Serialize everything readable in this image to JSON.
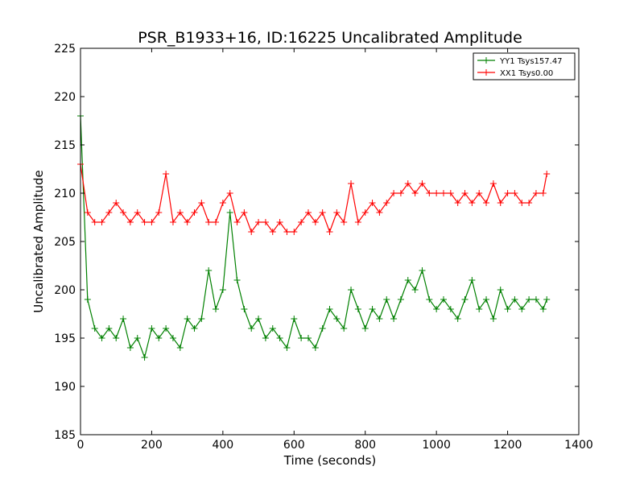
{
  "chart_data": {
    "type": "line",
    "title": "PSR_B1933+16, ID:16225 Uncalibrated Amplitude",
    "xlabel": "Time (seconds)",
    "ylabel": "Uncalibrated Amplitude",
    "xlim": [
      0,
      1400
    ],
    "ylim": [
      185,
      225
    ],
    "xticks": [
      "0",
      "200",
      "400",
      "600",
      "800",
      "1000",
      "1200",
      "1400"
    ],
    "yticks": [
      "185",
      "190",
      "195",
      "200",
      "205",
      "210",
      "215",
      "220",
      "225"
    ],
    "grid": false,
    "legend_position": "top-right",
    "series": [
      {
        "name": "YY1 Tsys157.47",
        "color": "#008000",
        "marker": "+",
        "x": [
          0,
          20,
          40,
          60,
          80,
          100,
          120,
          140,
          160,
          180,
          200,
          220,
          240,
          260,
          280,
          300,
          320,
          340,
          360,
          380,
          400,
          420,
          440,
          460,
          480,
          500,
          520,
          540,
          560,
          580,
          600,
          620,
          640,
          660,
          680,
          700,
          720,
          740,
          760,
          780,
          800,
          820,
          840,
          860,
          880,
          900,
          920,
          940,
          960,
          980,
          1000,
          1020,
          1040,
          1060,
          1080,
          1100,
          1120,
          1140,
          1160,
          1180,
          1200,
          1220,
          1240,
          1260,
          1280,
          1300,
          1310
        ],
        "y": [
          218,
          199,
          196,
          195,
          196,
          195,
          197,
          194,
          195,
          193,
          196,
          195,
          196,
          195,
          194,
          197,
          196,
          197,
          202,
          198,
          200,
          208,
          201,
          198,
          196,
          197,
          195,
          196,
          195,
          194,
          197,
          195,
          195,
          194,
          196,
          198,
          197,
          196,
          200,
          198,
          196,
          198,
          197,
          199,
          197,
          199,
          201,
          200,
          202,
          199,
          198,
          199,
          198,
          197,
          199,
          201,
          198,
          199,
          197,
          200,
          198,
          199,
          198,
          199,
          199,
          198,
          199
        ]
      },
      {
        "name": "XX1 Tsys0.00",
        "color": "#ff0000",
        "marker": "+",
        "x": [
          0,
          20,
          40,
          60,
          80,
          100,
          120,
          140,
          160,
          180,
          200,
          220,
          240,
          260,
          280,
          300,
          320,
          340,
          360,
          380,
          400,
          420,
          440,
          460,
          480,
          500,
          520,
          540,
          560,
          580,
          600,
          620,
          640,
          660,
          680,
          700,
          720,
          740,
          760,
          780,
          800,
          820,
          840,
          860,
          880,
          900,
          920,
          940,
          960,
          980,
          1000,
          1020,
          1040,
          1060,
          1080,
          1100,
          1120,
          1140,
          1160,
          1180,
          1200,
          1220,
          1240,
          1260,
          1280,
          1300,
          1310
        ],
        "y": [
          213,
          208,
          207,
          207,
          208,
          209,
          208,
          207,
          208,
          207,
          207,
          208,
          212,
          207,
          208,
          207,
          208,
          209,
          207,
          207,
          209,
          210,
          207,
          208,
          206,
          207,
          207,
          206,
          207,
          206,
          206,
          207,
          208,
          207,
          208,
          206,
          208,
          207,
          211,
          207,
          208,
          209,
          208,
          209,
          210,
          210,
          211,
          210,
          211,
          210,
          210,
          210,
          210,
          209,
          210,
          209,
          210,
          209,
          211,
          209,
          210,
          210,
          209,
          209,
          210,
          210,
          212
        ]
      }
    ]
  }
}
